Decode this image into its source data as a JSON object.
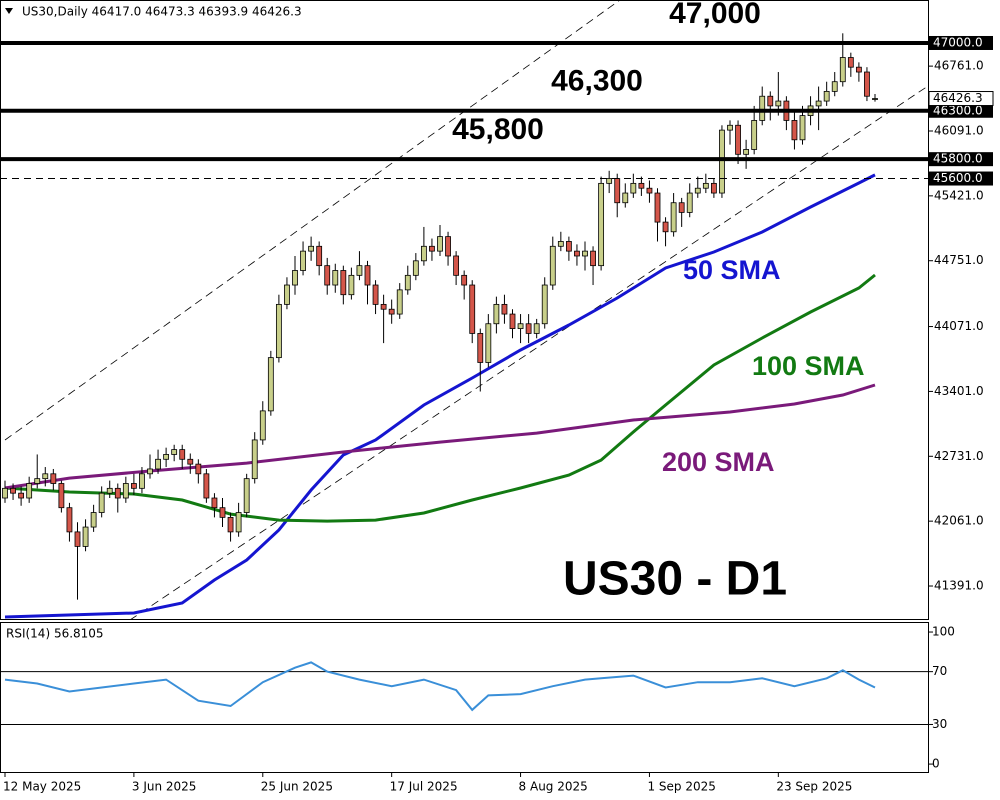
{
  "chart_data": [
    {
      "type": "candlestick",
      "header": "US30,Daily  46417.0 46473.3 46393.9 46426.3",
      "title": "US30 - D1",
      "categories": [
        "12 May 2025",
        null,
        null,
        null,
        null,
        null,
        null,
        null,
        null,
        null,
        null,
        null,
        null,
        null,
        null,
        null,
        "3 Jun 2025",
        null,
        null,
        null,
        null,
        null,
        null,
        null,
        null,
        null,
        null,
        null,
        null,
        null,
        null,
        null,
        "25 Jun 2025",
        null,
        null,
        null,
        null,
        null,
        null,
        null,
        null,
        null,
        null,
        null,
        null,
        null,
        null,
        null,
        "17 Jul 2025",
        null,
        null,
        null,
        null,
        null,
        null,
        null,
        null,
        null,
        null,
        null,
        null,
        null,
        null,
        null,
        "8 Aug 2025",
        null,
        null,
        null,
        null,
        null,
        null,
        null,
        null,
        null,
        null,
        null,
        null,
        null,
        null,
        null,
        "1 Sep 2025",
        null,
        null,
        null,
        null,
        null,
        null,
        null,
        null,
        null,
        null,
        null,
        null,
        null,
        null,
        null,
        "23 Sep 2025",
        null,
        null,
        null,
        null,
        null,
        null,
        null,
        null,
        null,
        null,
        null,
        null
      ],
      "open": [
        42300,
        42400,
        42350,
        42300,
        42450,
        42500,
        42550,
        42450,
        42200,
        41950,
        41800,
        42000,
        42150,
        42350,
        42400,
        42300,
        42450,
        42400,
        42550,
        42600,
        42700,
        42750,
        42800,
        42700,
        42650,
        42550,
        42300,
        42200,
        42100,
        41950,
        42150,
        42500,
        42900,
        43200,
        43750,
        44300,
        44500,
        44650,
        44850,
        44900,
        44700,
        44500,
        44650,
        44400,
        44600,
        44700,
        44500,
        44300,
        44250,
        44200,
        44450,
        44600,
        44750,
        44900,
        44850,
        45000,
        44800,
        44600,
        44500,
        44000,
        43700,
        44100,
        44300,
        44200,
        44050,
        44100,
        44000,
        44100,
        44500,
        44900,
        44950,
        44850,
        44800,
        44850,
        44700,
        45550,
        45600,
        45350,
        45450,
        45550,
        45500,
        45450,
        45150,
        45050,
        45350,
        45250,
        45450,
        45500,
        45550,
        45450,
        46100,
        46150,
        45850,
        45900,
        46200,
        46450,
        46350,
        46400,
        46200,
        46000,
        46250,
        46350,
        46400,
        46500,
        46600,
        46850,
        46750,
        46700,
        46417
      ],
      "high": [
        42480,
        42450,
        42420,
        42520,
        42750,
        42620,
        42600,
        42480,
        42250,
        42050,
        42080,
        42230,
        42420,
        42480,
        42450,
        42520,
        42550,
        42620,
        42750,
        42800,
        42820,
        42850,
        42850,
        42760,
        42700,
        42600,
        42350,
        42300,
        42150,
        42250,
        42550,
        42980,
        43300,
        43820,
        44400,
        44580,
        44800,
        44950,
        45000,
        44950,
        44780,
        44720,
        44700,
        44680,
        44850,
        44750,
        44550,
        44400,
        44350,
        44520,
        44700,
        44830,
        45100,
        44980,
        45120,
        45050,
        44850,
        44650,
        44550,
        44050,
        44200,
        44380,
        44400,
        44250,
        44200,
        44200,
        44150,
        44580,
        45000,
        45050,
        45000,
        44920,
        44950,
        44900,
        45620,
        45680,
        45650,
        45550,
        45650,
        45620,
        45580,
        45500,
        45200,
        45450,
        45400,
        45550,
        45620,
        45650,
        45600,
        46150,
        46200,
        46200,
        46000,
        46350,
        46550,
        46500,
        46700,
        46450,
        46300,
        46350,
        46450,
        46550,
        46600,
        46700,
        47100,
        46900,
        46800,
        46750,
        46473.3
      ],
      "low": [
        42250,
        42280,
        42220,
        42250,
        42400,
        42420,
        42380,
        42150,
        41850,
        41250,
        41750,
        41950,
        42100,
        42300,
        42150,
        42250,
        42330,
        42350,
        42500,
        42550,
        42620,
        42680,
        42600,
        42550,
        42450,
        42250,
        42100,
        42000,
        41850,
        41900,
        42100,
        42450,
        42850,
        43150,
        43700,
        44250,
        44400,
        44600,
        44750,
        44600,
        44400,
        44420,
        44300,
        44350,
        44550,
        44300,
        44200,
        43900,
        44100,
        44150,
        44400,
        44550,
        44700,
        44750,
        44800,
        44700,
        44500,
        44350,
        43900,
        43400,
        43650,
        44000,
        44100,
        43950,
        43900,
        43900,
        43950,
        44050,
        44450,
        44850,
        44750,
        44700,
        44650,
        44500,
        44650,
        45450,
        45200,
        45300,
        45400,
        45420,
        45350,
        44950,
        44900,
        45000,
        45100,
        45200,
        45400,
        45450,
        45400,
        45400,
        45950,
        45750,
        45700,
        45850,
        46150,
        46200,
        46250,
        46100,
        45900,
        45950,
        46150,
        46100,
        46350,
        46450,
        46550,
        46650,
        46600,
        46400,
        46393.9
      ],
      "close": [
        42400,
        42350,
        42300,
        42450,
        42500,
        42550,
        42450,
        42200,
        41950,
        41800,
        42000,
        42150,
        42350,
        42400,
        42300,
        42450,
        42400,
        42550,
        42600,
        42700,
        42750,
        42800,
        42700,
        42650,
        42550,
        42300,
        42200,
        42100,
        41950,
        42150,
        42500,
        42900,
        43200,
        43750,
        44300,
        44500,
        44650,
        44850,
        44900,
        44700,
        44500,
        44650,
        44400,
        44600,
        44700,
        44500,
        44300,
        44250,
        44200,
        44450,
        44600,
        44750,
        44900,
        44850,
        45000,
        44800,
        44600,
        44500,
        44000,
        43700,
        44100,
        44300,
        44200,
        44050,
        44100,
        44000,
        44100,
        44500,
        44900,
        44950,
        44850,
        44800,
        44850,
        44700,
        45550,
        45600,
        45350,
        45450,
        45550,
        45500,
        45450,
        45150,
        45050,
        45350,
        45250,
        45450,
        45500,
        45550,
        45450,
        46100,
        46150,
        45850,
        45900,
        46200,
        46450,
        46350,
        46400,
        46200,
        46000,
        46250,
        46350,
        46400,
        46500,
        46600,
        46850,
        46750,
        46700,
        46450,
        46426.3
      ],
      "up_color": "#c8cf8a",
      "down_color": "#d4564a",
      "ylim": [
        41040,
        47444
      ],
      "yticks": [
        {
          "value": 46761,
          "label": "46761.0"
        },
        {
          "value": 46091,
          "label": "46091.0"
        },
        {
          "value": 45421,
          "label": "45421.0"
        },
        {
          "value": 44751,
          "label": "44751.0"
        },
        {
          "value": 44071,
          "label": "44071.0"
        },
        {
          "value": 43401,
          "label": "43401.0"
        },
        {
          "value": 42731,
          "label": "42731.0"
        },
        {
          "value": 42061,
          "label": "42061.0"
        },
        {
          "value": 41391,
          "label": "41391.0"
        }
      ],
      "levels": [
        {
          "value": 47000,
          "label": "47000.0",
          "text": "47,000",
          "style": "solid"
        },
        {
          "value": 46300,
          "label": "46300.0",
          "text": "46,300",
          "style": "solid"
        },
        {
          "value": 45800,
          "label": "45800.0",
          "text": "45,800",
          "style": "solid"
        },
        {
          "value": 45600,
          "label": "45600.0",
          "style": "dashed"
        }
      ],
      "current_price": 46426.3,
      "overlays": [
        {
          "name": "50 SMA",
          "color": "#1515d0",
          "x": [
            0,
            16,
            22,
            26,
            30,
            34,
            38,
            42,
            46,
            52,
            58,
            64,
            70,
            76,
            82,
            88,
            94,
            100,
            106,
            108
          ],
          "values": [
            41071,
            41112,
            41216,
            41453,
            41660,
            41970,
            42383,
            42744,
            42899,
            43261,
            43540,
            43829,
            44087,
            44366,
            44676,
            44841,
            45048,
            45306,
            45554,
            45637
          ]
        },
        {
          "name": "100 SMA",
          "color": "#127a12",
          "x": [
            0,
            8,
            16,
            22,
            28,
            34,
            40,
            46,
            52,
            58,
            64,
            70,
            74,
            78,
            82,
            88,
            94,
            100,
            106,
            108
          ],
          "values": [
            42403,
            42362,
            42341,
            42279,
            42134,
            42072,
            42062,
            42072,
            42145,
            42279,
            42403,
            42537,
            42692,
            42982,
            43261,
            43674,
            43953,
            44221,
            44469,
            44603
          ]
        },
        {
          "name": "200 SMA",
          "color": "#7a1a7a",
          "x": [
            0,
            8,
            18,
            30,
            42,
            54,
            66,
            78,
            90,
            98,
            104,
            108
          ],
          "values": [
            42403,
            42506,
            42579,
            42661,
            42775,
            42878,
            42971,
            43106,
            43188,
            43271,
            43364,
            43467
          ]
        }
      ]
    },
    {
      "type": "line",
      "title": "RSI(14) 56.8105",
      "series": [
        {
          "color": "#3a8fd8",
          "x": [
            0,
            4,
            8,
            12,
            16,
            20,
            24,
            28,
            32,
            36,
            38,
            40,
            44,
            48,
            52,
            56,
            58,
            60,
            64,
            68,
            72,
            74,
            78,
            82,
            86,
            90,
            94,
            98,
            102,
            104,
            106,
            108
          ],
          "values": [
            64,
            61,
            55,
            58,
            61,
            64,
            48,
            44,
            62,
            73,
            77,
            70,
            64,
            59,
            64,
            56,
            41,
            52,
            53,
            59,
            64,
            65,
            67,
            58,
            62,
            62,
            65,
            59,
            65,
            71,
            64,
            58
          ]
        }
      ],
      "ylim": [
        -6,
        107.6
      ],
      "yticks": [
        100,
        70,
        30,
        0
      ],
      "hlines": [
        70,
        30
      ]
    }
  ]
}
